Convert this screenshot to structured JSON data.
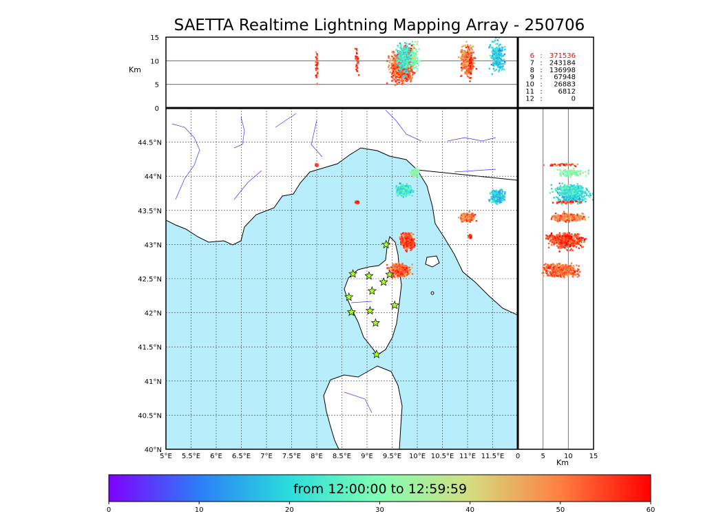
{
  "title": "SAETTA Realtime Lightning Mapping Array - 250706",
  "alt_axis": {
    "unit_label": "Km",
    "ticks": [
      "15",
      "10",
      "5",
      "0"
    ],
    "range": [
      0,
      15
    ]
  },
  "lat_axis": {
    "ticks": [
      "44.5°N",
      "44°N",
      "43.5°N",
      "43°N",
      "42.5°N",
      "42°N",
      "41.5°N",
      "41°N",
      "40.5°N",
      "40°N"
    ],
    "values": [
      44.5,
      44.0,
      43.5,
      43.0,
      42.5,
      42.0,
      41.5,
      41.0,
      40.5,
      40.0
    ],
    "range": [
      40.0,
      45.0
    ]
  },
  "lon_axis": {
    "ticks": [
      "5°E",
      "5.5°E",
      "6°E",
      "6.5°E",
      "7°E",
      "7.5°E",
      "8°E",
      "8.5°E",
      "9°E",
      "9.5°E",
      "10°E",
      "10.5°E",
      "11°E",
      "11.5°E"
    ],
    "values": [
      5.0,
      5.5,
      6.0,
      6.5,
      7.0,
      7.5,
      8.0,
      8.5,
      9.0,
      9.5,
      10.0,
      10.5,
      11.0,
      11.5
    ],
    "range": [
      5.0,
      12.0
    ]
  },
  "side_axis": {
    "unit_label": "Km",
    "ticks": [
      "0",
      "5",
      "10",
      "15"
    ],
    "range": [
      0,
      15
    ]
  },
  "counts": [
    {
      "hour": "6",
      "count": "371536",
      "highlight": true
    },
    {
      "hour": "7",
      "count": "243184",
      "highlight": false
    },
    {
      "hour": "8",
      "count": "136998",
      "highlight": false
    },
    {
      "hour": "9",
      "count": "67948",
      "highlight": false
    },
    {
      "hour": "10",
      "count": "26883",
      "highlight": false
    },
    {
      "hour": "11",
      "count": "6812",
      "highlight": false
    },
    {
      "hour": "12",
      "count": "0",
      "highlight": false
    }
  ],
  "colorbar": {
    "label": "from 12:00:00 to 12:59:59",
    "ticks": [
      "0",
      "10",
      "20",
      "30",
      "40",
      "50",
      "60"
    ],
    "range": [
      0,
      60
    ],
    "colors": [
      "#7f00ff",
      "#2c7ef7",
      "#2adddd",
      "#80ffb4",
      "#d4dd80",
      "#ff7f40",
      "#ff0000"
    ]
  },
  "colors": {
    "sea": "#b8eefb",
    "land": "#ffffff",
    "rivers": "#3333ff",
    "highlight_text": "#ff0000",
    "station_fill": "#aaff22"
  },
  "stations": [
    {
      "lon": 9.38,
      "lat": 43.0
    },
    {
      "lon": 8.72,
      "lat": 42.57
    },
    {
      "lon": 9.04,
      "lat": 42.54
    },
    {
      "lon": 9.45,
      "lat": 42.56
    },
    {
      "lon": 9.33,
      "lat": 42.45
    },
    {
      "lon": 9.1,
      "lat": 42.32
    },
    {
      "lon": 8.64,
      "lat": 42.23
    },
    {
      "lon": 9.55,
      "lat": 42.11
    },
    {
      "lon": 8.69,
      "lat": 42.01
    },
    {
      "lon": 9.06,
      "lat": 42.03
    },
    {
      "lon": 9.17,
      "lat": 41.85
    },
    {
      "lon": 9.19,
      "lat": 41.39
    }
  ],
  "chart_data": {
    "type": "scatter",
    "title": "SAETTA Realtime Lightning Mapping Array - 250706",
    "xlabel": "",
    "ylabel": "",
    "xlim": [
      5.0,
      12.0
    ],
    "ylim": [
      40.0,
      45.0
    ],
    "color_scale": {
      "label": "from 12:00:00 to 12:59:59",
      "range": [
        0,
        60
      ]
    },
    "clusters": [
      {
        "lon": 9.8,
        "lat": 43.05,
        "lon_spread": 0.18,
        "lat_spread": 0.16,
        "alt_km": 9.5,
        "minute": 55,
        "n": 420
      },
      {
        "lon": 9.65,
        "lat": 42.62,
        "lon_spread": 0.3,
        "lat_spread": 0.13,
        "alt_km": 8.5,
        "minute": 52,
        "n": 380
      },
      {
        "lon": 11.0,
        "lat": 43.4,
        "lon_spread": 0.2,
        "lat_spread": 0.09,
        "alt_km": 10.0,
        "minute": 50,
        "n": 260
      },
      {
        "lon": 11.6,
        "lat": 43.7,
        "lon_spread": 0.2,
        "lat_spread": 0.15,
        "alt_km": 11.0,
        "minute": 18,
        "n": 220
      },
      {
        "lon": 9.75,
        "lat": 43.8,
        "lon_spread": 0.22,
        "lat_spread": 0.12,
        "alt_km": 10.5,
        "minute": 22,
        "n": 240
      },
      {
        "lon": 9.95,
        "lat": 44.05,
        "lon_spread": 0.12,
        "lat_spread": 0.08,
        "alt_km": 10.5,
        "minute": 32,
        "n": 100
      },
      {
        "lon": 8.0,
        "lat": 44.17,
        "lon_spread": 0.04,
        "lat_spread": 0.03,
        "alt_km": 9.0,
        "minute": 55,
        "n": 30
      },
      {
        "lon": 8.8,
        "lat": 43.62,
        "lon_spread": 0.05,
        "lat_spread": 0.03,
        "alt_km": 10.0,
        "minute": 55,
        "n": 30
      },
      {
        "lon": 11.05,
        "lat": 43.12,
        "lon_spread": 0.05,
        "lat_spread": 0.04,
        "alt_km": 9.0,
        "minute": 57,
        "n": 25
      }
    ]
  }
}
